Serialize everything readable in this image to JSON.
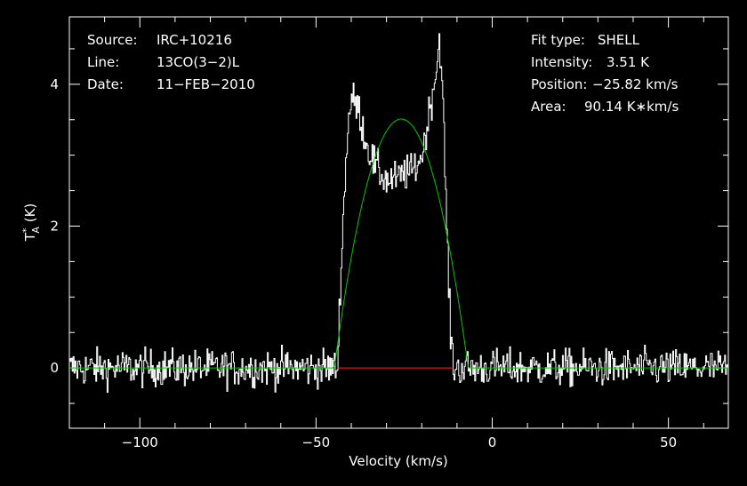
{
  "chart_data": {
    "type": "line",
    "xlabel": "Velocity (km/s)",
    "ylabel": "T*A (K)",
    "ylabel_main": "T",
    "ylabel_sup": "*",
    "ylabel_sub": "A",
    "ylabel_unit": " (K)",
    "xlim": [
      -120,
      67
    ],
    "ylim": [
      -0.85,
      4.95
    ],
    "x_ticks": [
      -100,
      -50,
      0,
      50
    ],
    "x_tick_labels": [
      "−100",
      "−50",
      "0",
      "50"
    ],
    "y_ticks": [
      0,
      2,
      4
    ],
    "y_tick_labels": [
      "0",
      "2",
      "4"
    ],
    "grid": false,
    "info_left": [
      {
        "label": "Source:",
        "value": "IRC+10216"
      },
      {
        "label": "Line:",
        "value": "13CO(3−2)L"
      },
      {
        "label": "Date:",
        "value": "11−FEB−2010"
      }
    ],
    "info_right": [
      {
        "label": "Fit type:",
        "value": "SHELL"
      },
      {
        "label": "Intensity:",
        "value": "3.51 K"
      },
      {
        "label": "Position:",
        "value": "−25.82 km/s"
      },
      {
        "label": "Area:",
        "value": "90.14 K∗km/s"
      }
    ],
    "series": [
      {
        "kind": "spectrum",
        "color": "#ffffff",
        "shape_x": [
          -120,
          -44,
          -43,
          -41,
          -40,
          -38,
          -36,
          -33,
          -30,
          -27,
          -25,
          -23,
          -20,
          -18,
          -16,
          -15,
          -14,
          -13,
          -12,
          -11,
          -10,
          67
        ],
        "shape_y": [
          0.0,
          0.0,
          1.5,
          3.5,
          3.8,
          3.65,
          3.2,
          2.8,
          2.65,
          2.65,
          2.75,
          2.75,
          3.0,
          3.6,
          4.2,
          4.7,
          3.6,
          2.0,
          0.5,
          0.0,
          0.0,
          0.0
        ],
        "noise_rms": 0.13,
        "samples": 700
      },
      {
        "kind": "shell-fit",
        "color": "#00c800",
        "center": -25.82,
        "peak": 3.51,
        "half_width": 19.0
      },
      {
        "kind": "baseline",
        "color": "#ff2020",
        "x": [
          -44,
          -11
        ],
        "y": [
          0,
          0
        ]
      }
    ]
  }
}
